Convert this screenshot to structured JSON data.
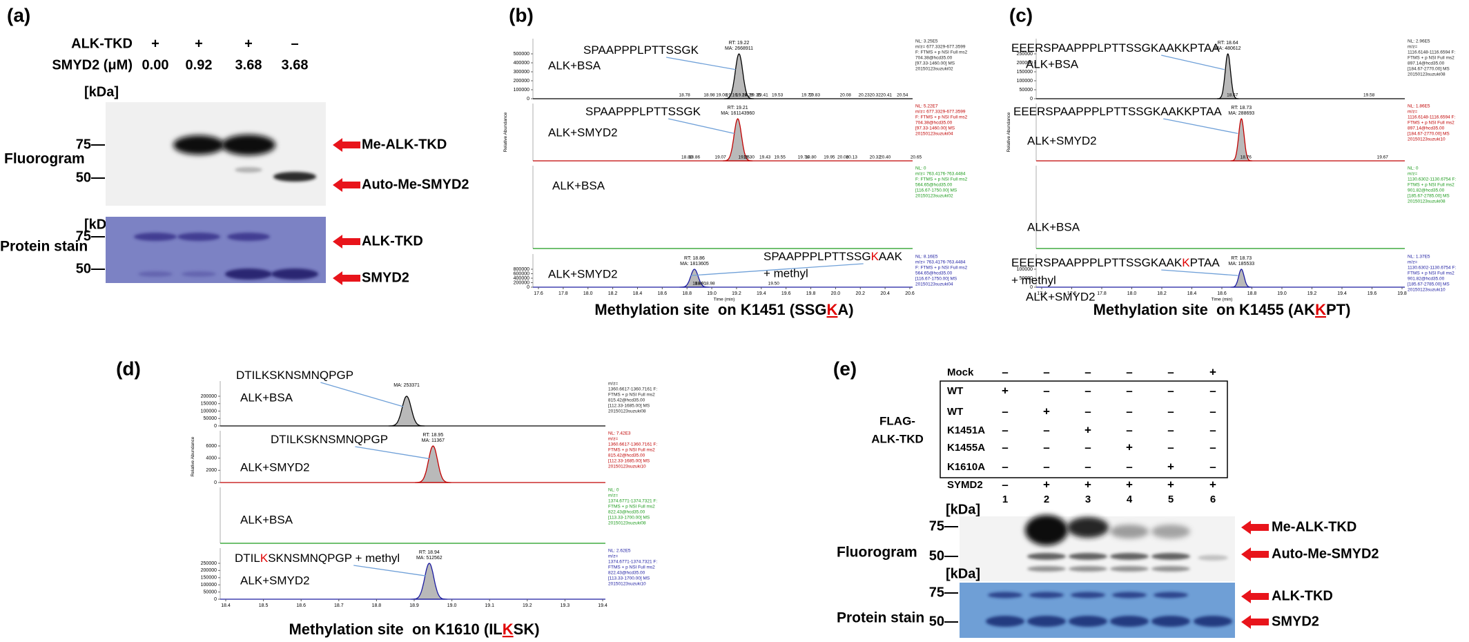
{
  "panel_a": {
    "label": "(a)",
    "row_names": [
      "ALK-TKD",
      "SMYD2 (μM)"
    ],
    "alk_tkd": [
      "+",
      "+",
      "+",
      "–"
    ],
    "smyd2": [
      "0.00",
      "0.92",
      "3.68",
      "3.68"
    ],
    "kda": "[kDa]",
    "fluorogram": "Fluorogram",
    "protein_stain": "Protein stain",
    "marker_75": "75—",
    "marker_50": "50—",
    "bands": [
      "Me-ALK-TKD",
      "Auto-Me-SMYD2",
      "ALK-TKD",
      "SMYD2"
    ]
  },
  "panel_b": {
    "label": "(b)",
    "title": [
      "Methylation site  on K1451 (SSG",
      "K",
      "A)"
    ],
    "xticks": [
      "17.6",
      "17.8",
      "18.0",
      "18.2",
      "18.4",
      "18.6",
      "18.8",
      "19.0",
      "19.2",
      "19.4",
      "19.6",
      "19.8",
      "20.0",
      "20.2",
      "20.4",
      "20.6"
    ],
    "xlabel": "Time (min)",
    "ylabel": "Relative Abundance",
    "traces": [
      {
        "peptide": [
          "SPAAPPPLPTTSSGK"
        ],
        "condition": "ALK+BSA",
        "color": "#000000",
        "peak": [
          "RT: 19.22",
          "MA: 2668911"
        ],
        "minor": [
          "18.78",
          "18.98",
          "19.08",
          "19.16",
          "19.24",
          "19.29",
          "19.35",
          "19.41",
          "19.53",
          "19.77",
          "19.83",
          "20.08",
          "20.23",
          "20.32",
          "20.41",
          "20.54"
        ],
        "yticks": [
          0,
          100000,
          200000,
          300000,
          400000,
          500000
        ],
        "info": [
          "NL: 3.25E5",
          "m/z= 677.3329-677.3599",
          "F: FTMS + p NSI Full ms2",
          "704.38@hcd35.00",
          "[97.33-1460.00] MS",
          "20150123suzuki02"
        ]
      },
      {
        "peptide": [
          "SPAAPPPLPTTSSGK"
        ],
        "condition": "ALK+SMYD2",
        "color": "#c00000",
        "peak": [
          "RT: 19.21",
          "MA: 161143960"
        ],
        "minor": [
          "18.80",
          "18.86",
          "19.07",
          "19.26",
          "19.30",
          "19.43",
          "19.55",
          "19.74",
          "19.80",
          "19.95",
          "20.06",
          "20.13",
          "20.32",
          "20.40",
          "20.65"
        ],
        "info": [
          "NL: 5.22E7",
          "m/z= 677.3329-677.3599",
          "F: FTMS + p NSI Full ms2",
          "704.38@hcd35.00",
          "[97.33-1460.00] MS",
          "20150123suzuki04"
        ]
      },
      {
        "condition": "ALK+BSA",
        "color": "#1a9a1a",
        "info": [
          "NL: 0",
          "m/z= 763.4176-763.4484",
          "F: FTMS + p NSI Full ms2",
          "564.65@hcd35.00",
          "[116.67-1750.00] MS",
          "20150123suzuki02"
        ]
      },
      {
        "peptide": [
          "SPAAPPPLPTTSSG",
          "K",
          "AAK"
        ],
        "modifier": "+ methyl",
        "condition": "ALK+SMYD2",
        "color": "#1a1aa0",
        "peak": [
          "RT: 18.86",
          "MA: 1813605"
        ],
        "minor": [
          "18.89",
          "18.91",
          "18.98",
          "19.50"
        ],
        "yticks": [
          0,
          200000,
          400000,
          600000,
          800000
        ],
        "info": [
          "NL: 8.16E5",
          "m/z= 763.4176-763.4484",
          "F: FTMS + p NSI Full ms2",
          "564.65@hcd35.00",
          "[116.67-1750.00] MS",
          "20150123suzuki04"
        ]
      }
    ]
  },
  "panel_c": {
    "label": "(c)",
    "title": [
      "Methylation site  on K1455 (AK",
      "K",
      "PT)"
    ],
    "xticks": [
      "17.4",
      "17.6",
      "17.8",
      "18.0",
      "18.2",
      "18.4",
      "18.6",
      "18.8",
      "19.0",
      "19.2",
      "19.4",
      "19.6",
      "19.8"
    ],
    "xlabel": "Time (min)",
    "ylabel": "Relative Abundance",
    "traces": [
      {
        "peptide": [
          "EEERSPAAPPPLPTTSSGKAAKKPTAA"
        ],
        "condition": "ALK+BSA",
        "color": "#000000",
        "peak": [
          "RT: 18.64",
          "MA: 480612"
        ],
        "minor": [
          "18.67",
          "19.58"
        ],
        "yticks": [
          0,
          50000,
          100000,
          150000,
          200000,
          250000
        ],
        "info": [
          "NL: 2.96E5",
          "m/z=",
          "1116.6148-1116.6594 F:",
          "FTMS + p NSI Full ms2",
          "897.14@hcd35.00",
          "[184.67-2770.00] MS",
          "20150123suzuki08"
        ]
      },
      {
        "peptide": [
          "EEERSPAAPPPLPTTSSGKAAKKPTAA"
        ],
        "condition": "ALK+SMYD2",
        "color": "#c00000",
        "peak": [
          "RT: 18.73",
          "MA: 288693"
        ],
        "minor": [
          "18.76",
          "19.67"
        ],
        "info": [
          "NL: 1.86E5",
          "m/z=",
          "1116.6148-1116.6594 F:",
          "FTMS + p NSI Full ms2",
          "897.14@hcd35.00",
          "[184.67-2770.00] MS",
          "20150123suzuki10"
        ]
      },
      {
        "condition": "ALK+BSA",
        "color": "#1a9a1a",
        "info": [
          "NL: 0",
          "m/z=",
          "1130.6302-1130.6754 F:",
          "FTMS + p NSI Full ms2",
          "901.82@hcd35.00",
          "[185.67-2785.00] MS",
          "20150123suzuki08"
        ]
      },
      {
        "peptide": [
          "EEERSPAAPPPLPTTSSGKAAK",
          "K",
          "PTAA"
        ],
        "modifier": "+ methyl",
        "condition": "ALK+SMYD2",
        "color": "#1a1aa0",
        "peak": [
          "RT: 18.73",
          "MA: 185533"
        ],
        "yticks": [
          0,
          50000,
          100000
        ],
        "info": [
          "NL: 1.37E5",
          "m/z=",
          "1130.6302-1130.6754 F:",
          "FTMS + p NSI Full ms2",
          "901.82@hcd35.00",
          "[185.67-2785.00] MS",
          "20150123suzuki10"
        ]
      }
    ]
  },
  "panel_d": {
    "label": "(d)",
    "title": [
      "Methylation site  on K1610 (IL",
      "K",
      "SK)"
    ],
    "xticks": [
      "18.4",
      "18.5",
      "18.6",
      "18.7",
      "18.8",
      "18.9",
      "19.0",
      "19.1",
      "19.2",
      "19.3",
      "19.4"
    ],
    "ylabel": "Relative Abundance",
    "traces": [
      {
        "peptide": [
          "DTILKSKNSMNQPGP"
        ],
        "condition": "ALK+BSA",
        "color": "#000000",
        "peak": [
          "MA: 253371"
        ],
        "yticks": [
          0,
          50000,
          100000,
          150000,
          200000
        ],
        "info": [
          "m/z=",
          "1360.6617-1360.7161 F:",
          "FTMS + p NSI Full ms2",
          "815.42@hcd35.00",
          "[112.33-1685.00] MS",
          "20150123suzuki08"
        ]
      },
      {
        "peptide": [
          "DTILKSKNSMNQPGP"
        ],
        "condition": "ALK+SMYD2",
        "color": "#c00000",
        "peak": [
          "RT: 18.95",
          "MA: 11367"
        ],
        "yticks": [
          0,
          2000,
          4000,
          6000
        ],
        "info": [
          "NL: 7.42E3",
          "m/z=",
          "1360.6617-1360.7161 F:",
          "FTMS + p NSI Full ms2",
          "815.42@hcd35.00",
          "[112.33-1685.00] MS",
          "20150123suzuki10"
        ]
      },
      {
        "condition": "ALK+BSA",
        "color": "#1a9a1a",
        "info": [
          "NL: 0",
          "m/z=",
          "1374.6771-1374.7321 F:",
          "FTMS + p NSI Full ms2",
          "822.43@hcd35.00",
          "[113.33-1700.00] MS",
          "20150123suzuki08"
        ]
      },
      {
        "peptide": [
          "DTIL",
          "K",
          "SKNSMNQPGP"
        ],
        "modifier": " + methyl",
        "condition": "ALK+SMYD2",
        "color": "#1a1aa0",
        "peak": [
          "RT: 18.94",
          "MA: 512562"
        ],
        "yticks": [
          0,
          50000,
          100000,
          150000,
          200000,
          250000
        ],
        "info": [
          "NL: 2.62E5",
          "m/z=",
          "1374.6771-1374.7321 F:",
          "FTMS + p NSI Full ms2",
          "822.43@hcd35.00",
          "[113.33-1700.00] MS",
          "20150123suzuki10"
        ]
      }
    ]
  },
  "panel_e": {
    "label": "(e)",
    "group": [
      "FLAG-",
      "ALK-TKD"
    ],
    "rows": [
      {
        "name": "Mock",
        "marks": [
          "–",
          "–",
          "–",
          "–",
          "–",
          "+"
        ]
      },
      {
        "name": "WT",
        "marks": [
          "+",
          "–",
          "–",
          "–",
          "–",
          "–"
        ]
      },
      {
        "name": "WT",
        "marks": [
          "–",
          "+",
          "–",
          "–",
          "–",
          "–"
        ]
      },
      {
        "name": "K1451A",
        "marks": [
          "–",
          "–",
          "+",
          "–",
          "–",
          "–"
        ]
      },
      {
        "name": "K1455A",
        "marks": [
          "–",
          "–",
          "–",
          "+",
          "–",
          "–"
        ]
      },
      {
        "name": "K1610A",
        "marks": [
          "–",
          "–",
          "–",
          "–",
          "+",
          "–"
        ]
      },
      {
        "name": "SYMD2",
        "marks": [
          "–",
          "+",
          "+",
          "+",
          "+",
          "+"
        ]
      }
    ],
    "lanes": [
      1,
      2,
      3,
      4,
      5,
      6
    ],
    "kda": "[kDa]",
    "fluorogram": "Fluorogram",
    "protein_stain": "Protein stain",
    "marker_75": "75—",
    "marker_50": "50—",
    "bands": [
      "Me-ALK-TKD",
      "Auto-Me-SMYD2",
      "ALK-TKD",
      "SMYD2"
    ]
  }
}
